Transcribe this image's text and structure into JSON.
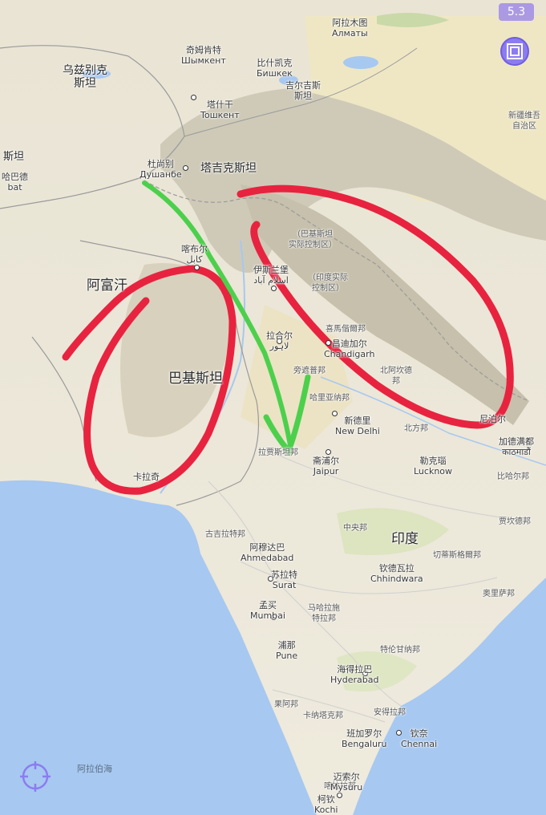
{
  "zoom_level": "5.3",
  "sea": {
    "arabian_sea": "阿拉伯海"
  },
  "countries": {
    "uzbekistan": "乌兹别克\n斯坦",
    "tajikistan": "塔吉克斯坦",
    "afghanistan": "阿富汗",
    "pakistan": "巴基斯坦",
    "india": "印度",
    "turkmenistan_partial": "斯坦",
    "nepal": "尼泊尔"
  },
  "regions": {
    "pak_kashmir": "（巴基斯坦\n实际控制区）",
    "ind_kashmir": "（印度实际\n控制区）",
    "xinjiang": "新疆维吾\n自治区",
    "himachal": "喜馬偕爾邦",
    "uttarakhand": "北阿坎德\n邦",
    "punjab_in": "旁遮普邦",
    "haryana": "哈里亚纳邦",
    "rajasthan": "拉贾斯坦邦",
    "uttar_pradesh": "北方邦",
    "bihar": "比哈尔邦",
    "jharkhand": "贾坎德邦",
    "gujarat": "古吉拉特邦",
    "madhya_pradesh": "中央邦",
    "chhattisgarh": "切蒂斯格爾邦",
    "odisha": "奥里萨邦",
    "maharashtra": "马哈拉施\n特拉邦",
    "telangana": "特伦甘纳邦",
    "karnataka": "卡纳塔克邦",
    "andhra": "安得拉邦",
    "goa": "果阿邦",
    "kerala": "喀拉拉邦"
  },
  "cities": {
    "almaty": "阿拉木图\nАлматы",
    "shymkent": "奇姆肯特\nШымкент",
    "bishkek": "比什凯克\nБишкек",
    "kyrgyzstan": "吉尔吉斯\n斯坦",
    "tashkent": "塔什干\nToшкент",
    "dushanbe": "杜尚别\nДушанбе",
    "ashgabat": "哈巴德\nbat",
    "kabul": "喀布尔\nکابل",
    "islamabad": "伊斯兰堡\nاسلام آباد",
    "lahore": "拉合尔\nلاہور",
    "chandigarh": "昌迪加尔\nChandigarh",
    "new_delhi": "新德里\nNew Delhi",
    "jaipur": "斋浦尔\nJaipur",
    "lucknow": "勒克瑙\nLucknow",
    "kathmandu": "加德满都\nकाठमाडौं",
    "karachi": "卡拉奇",
    "ahmedabad": "阿穆达巴\nAhmedabad",
    "surat": "苏拉特\nSurat",
    "chhindwara": "钦德瓦拉\nChhindwara",
    "mumbai": "孟买\nMumbai",
    "pune": "浦那\nPune",
    "hyderabad": "海得拉巴\nHyderabad",
    "bengaluru": "班加罗尔\nBengaluru",
    "chennai": "钦奈\nChennai",
    "mysuru": "迈索尔\nMysuru",
    "kochi": "柯钦\nKochi"
  },
  "icons": {
    "layers": "layers-icon",
    "locate": "crosshair-icon"
  },
  "annotation_colors": {
    "red": "#e8233f",
    "green": "#4cd04c"
  }
}
